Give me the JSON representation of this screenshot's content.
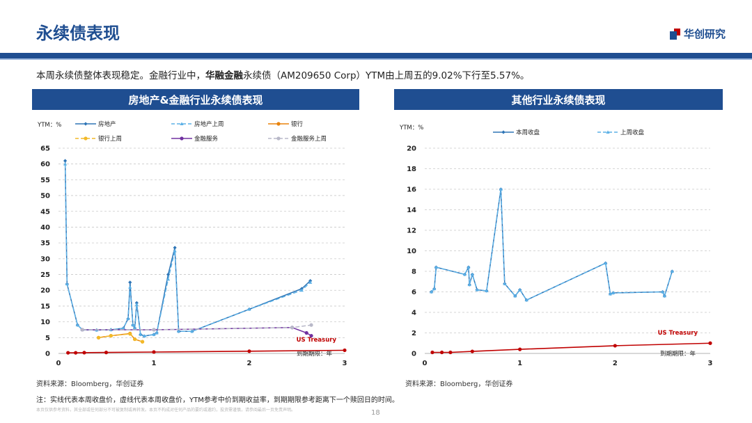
{
  "header": {
    "title": "永续债表现",
    "logo_text": "华创研究",
    "summary_pre": "本周永续债整体表现稳定。金融行业中，",
    "summary_bold": "华融金融",
    "summary_post": "永续债（AM209650 Corp）YTM由上周五的9.02%下行至5.57%。"
  },
  "colors": {
    "brand": "#1f4e91",
    "realestate": "#2e75b6",
    "realestate_prev": "#5bb0e6",
    "bank": "#e8820c",
    "bank_prev": "#f2b928",
    "finance": "#7030a0",
    "finance_prev": "#b8b8c8",
    "treasury": "#c00000"
  },
  "chart_data": [
    {
      "type": "line",
      "title": "房地产&金融行业永续债表现",
      "ylabel": "YTM：%",
      "xlabel": "到期期限：年",
      "xlim": [
        0,
        3
      ],
      "ylim": [
        0,
        65
      ],
      "x_ticks": [
        0,
        1,
        2,
        3
      ],
      "y_ticks": [
        0,
        5,
        10,
        15,
        20,
        25,
        30,
        35,
        40,
        45,
        50,
        55,
        60,
        65
      ],
      "annotation": "US Treasury",
      "series": [
        {
          "name": "房地产",
          "style": "solid",
          "marker": "diamond",
          "color_key": "realestate",
          "points": [
            [
              0.07,
              61.0
            ],
            [
              0.09,
              22.0
            ],
            [
              0.2,
              9.0
            ],
            [
              0.25,
              7.5
            ],
            [
              0.4,
              7.4
            ],
            [
              0.55,
              7.5
            ],
            [
              0.68,
              8.0
            ],
            [
              0.73,
              11.0
            ],
            [
              0.75,
              22.5
            ],
            [
              0.78,
              9.0
            ],
            [
              0.8,
              8.0
            ],
            [
              0.82,
              16.0
            ],
            [
              0.86,
              6.0
            ],
            [
              0.9,
              5.5
            ],
            [
              1.0,
              6.0
            ],
            [
              1.03,
              6.5
            ],
            [
              1.15,
              25.0
            ],
            [
              1.22,
              33.5
            ],
            [
              1.26,
              7.0
            ],
            [
              1.4,
              7.0
            ],
            [
              2.0,
              14.0
            ],
            [
              2.55,
              20.5
            ],
            [
              2.64,
              23.0
            ]
          ]
        },
        {
          "name": "房地产上周",
          "style": "dash",
          "marker": "triangle",
          "color_key": "realestate_prev",
          "points": [
            [
              0.07,
              60.0
            ],
            [
              0.09,
              22.0
            ],
            [
              0.2,
              9.0
            ],
            [
              0.25,
              7.5
            ],
            [
              0.4,
              7.4
            ],
            [
              0.55,
              7.5
            ],
            [
              0.68,
              8.0
            ],
            [
              0.73,
              11.0
            ],
            [
              0.75,
              21.0
            ],
            [
              0.78,
              9.0
            ],
            [
              0.8,
              8.0
            ],
            [
              0.82,
              15.5
            ],
            [
              0.86,
              6.0
            ],
            [
              0.9,
              5.5
            ],
            [
              1.0,
              6.0
            ],
            [
              1.03,
              6.5
            ],
            [
              1.15,
              23.5
            ],
            [
              1.22,
              32.5
            ],
            [
              1.26,
              7.0
            ],
            [
              1.4,
              7.0
            ],
            [
              2.0,
              14.0
            ],
            [
              2.55,
              20.0
            ],
            [
              2.64,
              22.5
            ]
          ]
        },
        {
          "name": "银行",
          "style": "solid",
          "marker": "circle",
          "color_key": "bank",
          "points": [
            [
              0.42,
              5.0
            ],
            [
              0.55,
              5.6
            ],
            [
              0.75,
              6.3
            ],
            [
              0.8,
              4.5
            ],
            [
              0.88,
              3.7
            ]
          ]
        },
        {
          "name": "银行上周",
          "style": "dash",
          "marker": "circle",
          "color_key": "bank_prev",
          "points": [
            [
              0.42,
              5.0
            ],
            [
              0.55,
              5.6
            ],
            [
              0.75,
              6.2
            ],
            [
              0.8,
              4.5
            ],
            [
              0.88,
              3.7
            ]
          ]
        },
        {
          "name": "金融服务",
          "style": "solid",
          "marker": "circle",
          "color_key": "finance",
          "points": [
            [
              0.25,
              7.5
            ],
            [
              1.0,
              7.5
            ],
            [
              2.45,
              8.2
            ],
            [
              2.6,
              6.5
            ],
            [
              2.65,
              5.6
            ]
          ]
        },
        {
          "name": "金融服务上周",
          "style": "dash",
          "marker": "circle",
          "color_key": "finance_prev",
          "points": [
            [
              0.25,
              7.5
            ],
            [
              1.0,
              7.5
            ],
            [
              2.45,
              8.2
            ],
            [
              2.65,
              9.0
            ]
          ]
        },
        {
          "name": "US Treasury",
          "style": "solid",
          "marker": "circle",
          "color_key": "treasury",
          "legend": false,
          "points": [
            [
              0.1,
              0.2
            ],
            [
              0.18,
              0.2
            ],
            [
              0.27,
              0.25
            ],
            [
              0.5,
              0.3
            ],
            [
              1.0,
              0.45
            ],
            [
              2.0,
              0.7
            ],
            [
              3.0,
              1.0
            ]
          ]
        }
      ]
    },
    {
      "type": "line",
      "title": "其他行业永续债表现",
      "ylabel": "YTM：%",
      "xlabel": "到期期限：年",
      "xlim": [
        0,
        3
      ],
      "ylim": [
        0,
        20
      ],
      "x_ticks": [
        0,
        1,
        2,
        3
      ],
      "y_ticks": [
        0,
        2,
        4,
        6,
        8,
        10,
        12,
        14,
        16,
        18,
        20
      ],
      "annotation": "US Treasury",
      "series": [
        {
          "name": "本周收盘",
          "style": "solid",
          "marker": "diamond",
          "color_key": "realestate",
          "points": [
            [
              0.07,
              6.0
            ],
            [
              0.1,
              6.3
            ],
            [
              0.12,
              8.4
            ],
            [
              0.42,
              7.7
            ],
            [
              0.46,
              8.4
            ],
            [
              0.47,
              6.7
            ],
            [
              0.5,
              7.7
            ],
            [
              0.55,
              6.2
            ],
            [
              0.65,
              6.1
            ],
            [
              0.8,
              16.0
            ],
            [
              0.84,
              6.8
            ],
            [
              0.95,
              5.6
            ],
            [
              1.0,
              6.2
            ],
            [
              1.07,
              5.2
            ],
            [
              1.9,
              8.8
            ],
            [
              1.95,
              5.8
            ],
            [
              1.98,
              5.9
            ],
            [
              2.5,
              6.0
            ],
            [
              2.52,
              5.6
            ],
            [
              2.6,
              8.0
            ]
          ]
        },
        {
          "name": "上周收盘",
          "style": "dash",
          "marker": "triangle",
          "color_key": "realestate_prev",
          "points": [
            [
              0.07,
              6.0
            ],
            [
              0.1,
              6.3
            ],
            [
              0.12,
              8.4
            ],
            [
              0.42,
              7.7
            ],
            [
              0.46,
              8.4
            ],
            [
              0.47,
              6.7
            ],
            [
              0.5,
              7.7
            ],
            [
              0.55,
              6.2
            ],
            [
              0.65,
              6.1
            ],
            [
              0.8,
              16.0
            ],
            [
              0.84,
              6.8
            ],
            [
              0.95,
              5.6
            ],
            [
              1.0,
              6.2
            ],
            [
              1.07,
              5.2
            ],
            [
              1.9,
              8.8
            ],
            [
              1.95,
              5.8
            ],
            [
              1.98,
              5.9
            ],
            [
              2.5,
              6.0
            ],
            [
              2.52,
              5.6
            ],
            [
              2.6,
              8.0
            ]
          ]
        },
        {
          "name": "US Treasury",
          "style": "solid",
          "marker": "circle",
          "color_key": "treasury",
          "legend": false,
          "points": [
            [
              0.08,
              0.1
            ],
            [
              0.18,
              0.1
            ],
            [
              0.27,
              0.1
            ],
            [
              0.5,
              0.2
            ],
            [
              1.0,
              0.4
            ],
            [
              2.0,
              0.75
            ],
            [
              3.0,
              1.0
            ]
          ]
        }
      ]
    }
  ],
  "footer": {
    "source_left": "资料来源：Bloomberg，华创证券",
    "source_right": "资料来源：Bloomberg，华创证券",
    "note": "注：实线代表本周收盘价，虚线代表本周收盘价，YTM参考中价到期收益率，到期期限参考距离下一个赎回日的时间。",
    "disclaimer": "本页仅供参考资料，其全部或任何部分不可被复制或再转发。本页不构成对任何产品的要约或邀约，投资需谨慎，请参阅最后一页免责声明。",
    "page_number": "18"
  }
}
